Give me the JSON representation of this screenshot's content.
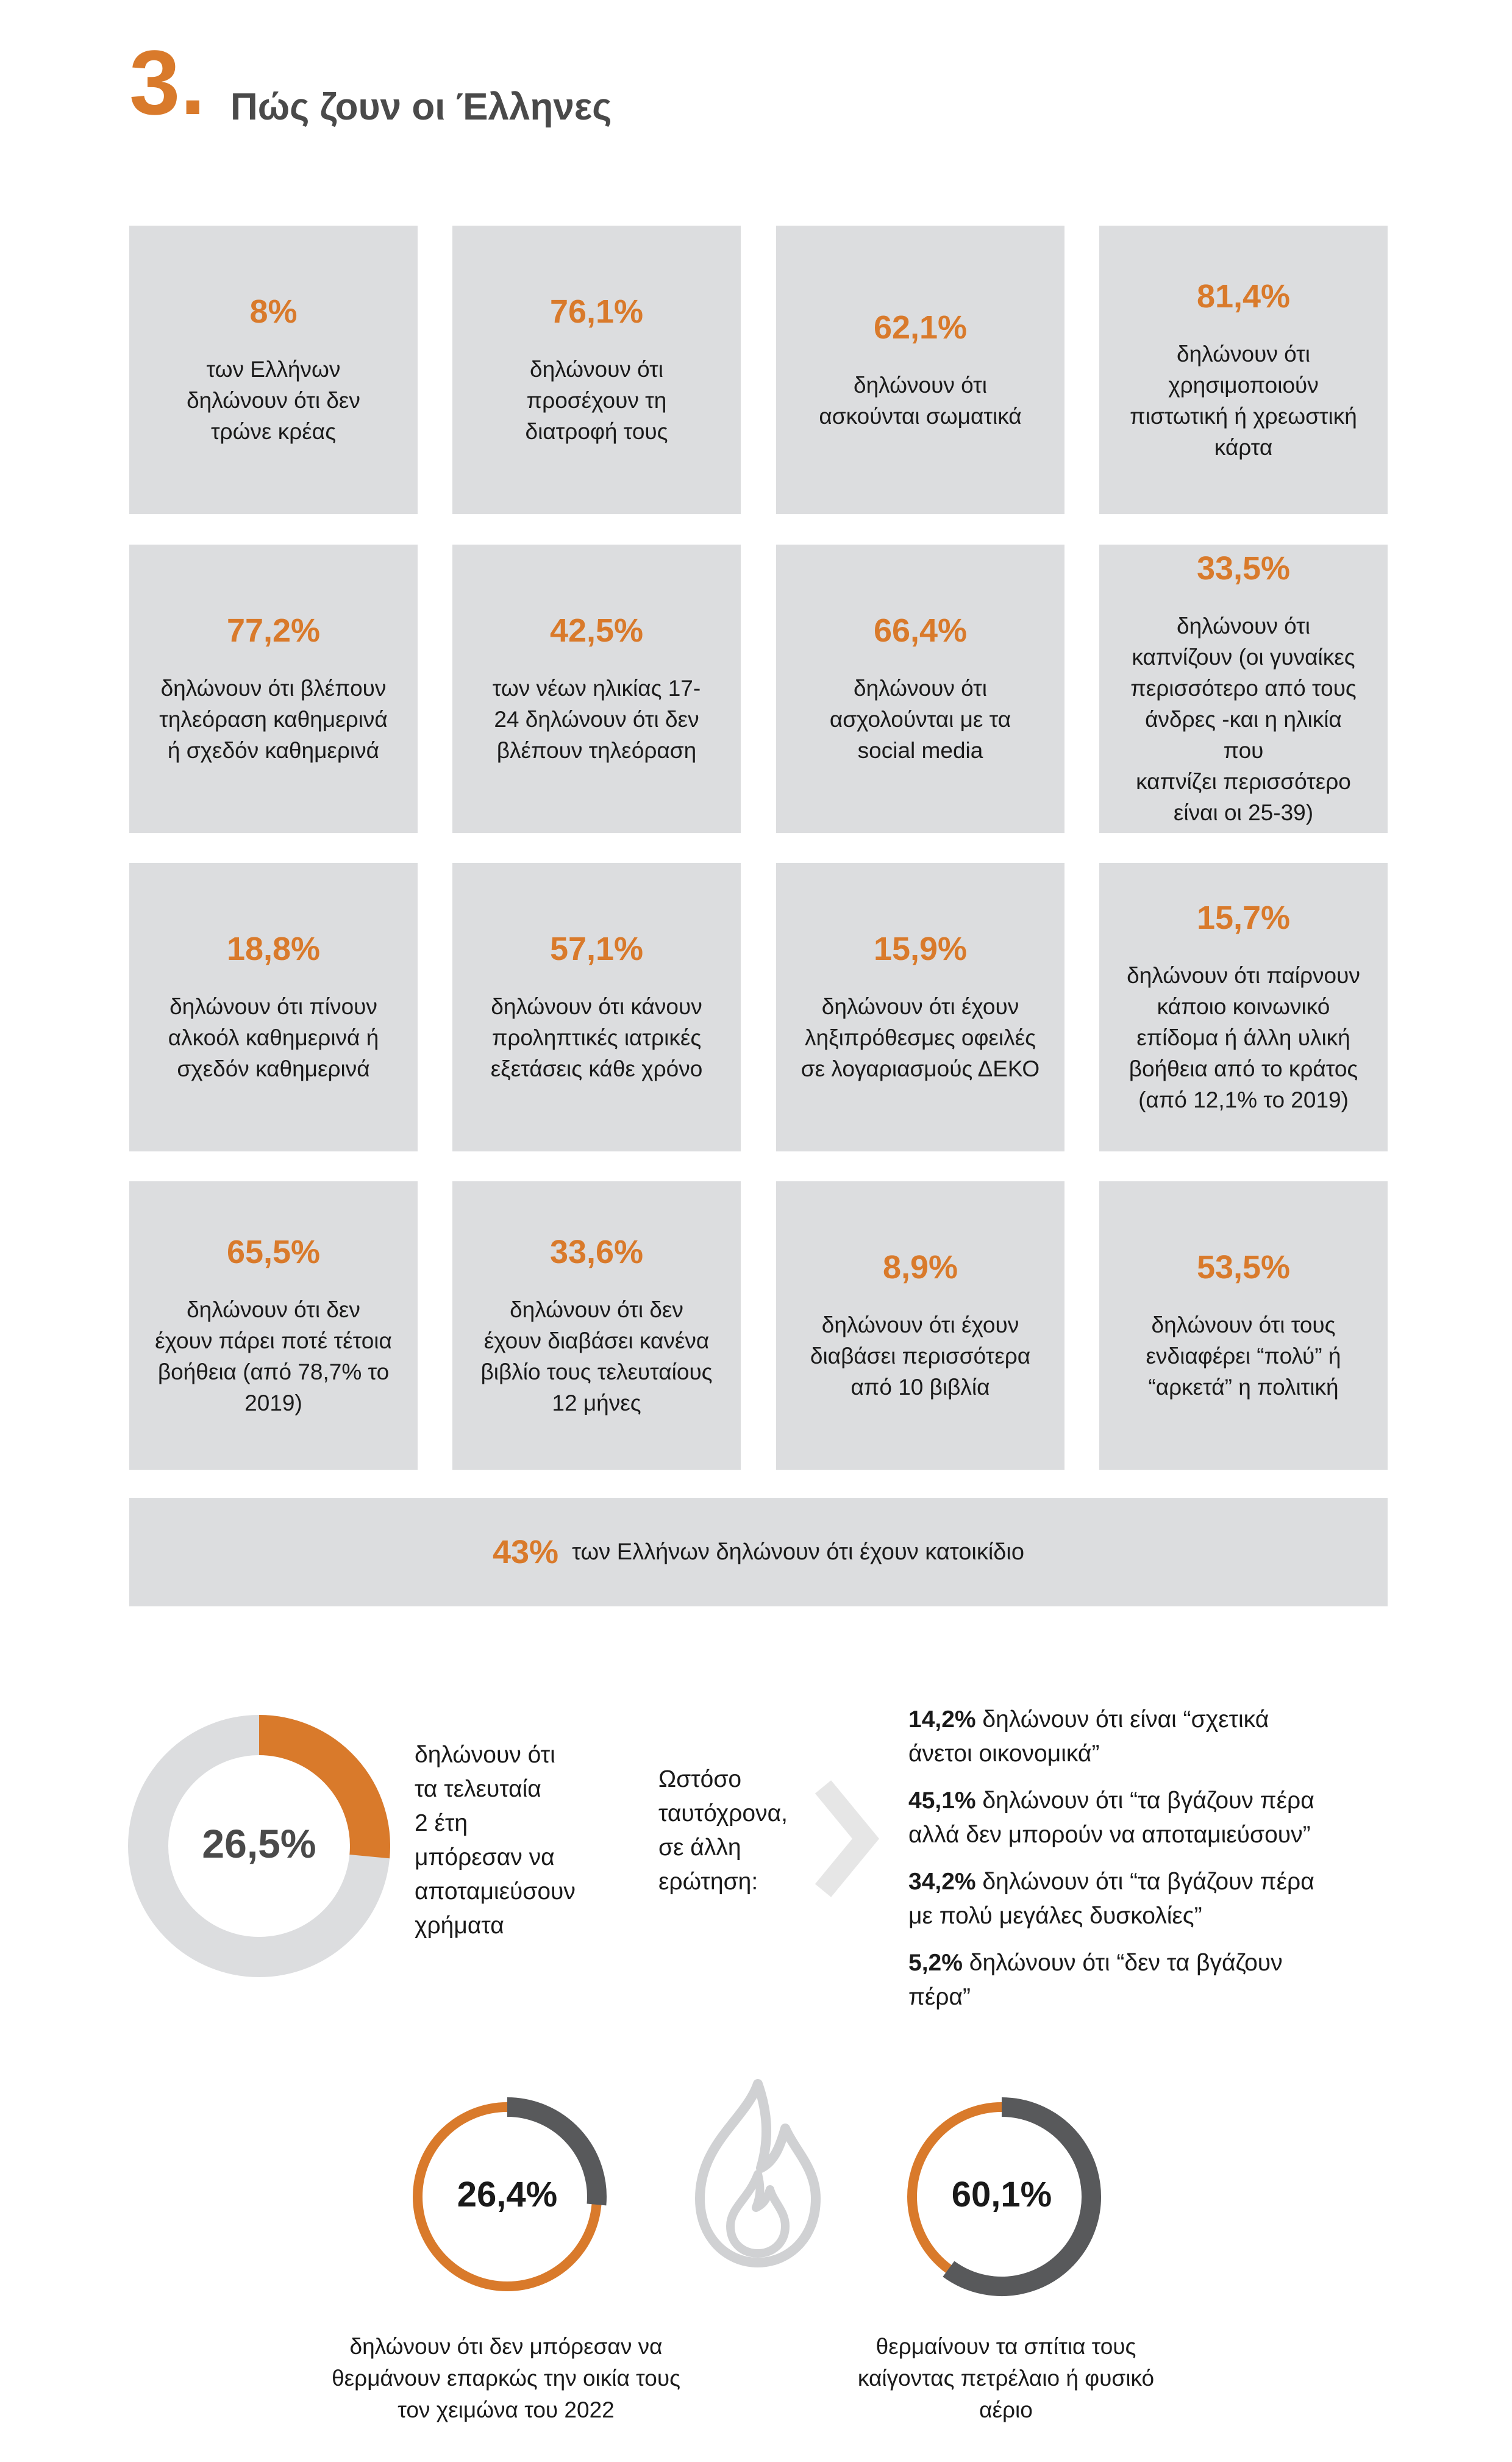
{
  "header": {
    "number": "3.",
    "title": "Πώς ζουν οι Έλληνες"
  },
  "cards": [
    {
      "pct": "8%",
      "desc": "των Ελλήνων\nδηλώνουν ότι δεν\nτρώνε κρέας"
    },
    {
      "pct": "76,1%",
      "desc": "δηλώνουν ότι\nπροσέχουν τη\nδιατροφή τους"
    },
    {
      "pct": "62,1%",
      "desc": "δηλώνουν ότι\nασκούνται σωματικά"
    },
    {
      "pct": "81,4%",
      "desc": "δηλώνουν ότι\nχρησιμοποιούν\nπιστωτική ή χρεωστική\nκάρτα"
    },
    {
      "pct": "77,2%",
      "desc": "δηλώνουν ότι βλέπουν\nτηλεόραση καθημερινά\nή σχεδόν καθημερινά"
    },
    {
      "pct": "42,5%",
      "desc": "των νέων ηλικίας 17-\n24 δηλώνουν ότι δεν\nβλέπουν τηλεόραση"
    },
    {
      "pct": "66,4%",
      "desc": "δηλώνουν ότι\nασχολούνται με τα\nsocial media"
    },
    {
      "pct": "33,5%",
      "desc": "δηλώνουν ότι\nκαπνίζουν (οι γυναίκες\nπερισσότερο από τους\nάνδρες -και η ηλικία που\nκαπνίζει περισσότερο\nείναι οι 25-39)"
    },
    {
      "pct": "18,8%",
      "desc": "δηλώνουν ότι πίνουν\nαλκοόλ καθημερινά ή\nσχεδόν καθημερινά"
    },
    {
      "pct": "57,1%",
      "desc": "δηλώνουν ότι κάνουν\nπροληπτικές ιατρικές\nεξετάσεις κάθε χρόνο"
    },
    {
      "pct": "15,9%",
      "desc": "δηλώνουν ότι έχουν\nληξιπρόθεσμες οφειλές\nσε λογαριασμούς ΔΕΚΟ"
    },
    {
      "pct": "15,7%",
      "desc": "δηλώνουν ότι παίρνουν\nκάποιο κοινωνικό\nεπίδομα ή άλλη υλική\nβοήθεια από το κράτος\n(από 12,1% το 2019)"
    },
    {
      "pct": "65,5%",
      "desc": "δηλώνουν ότι δεν\nέχουν πάρει ποτέ τέτοια\nβοήθεια (από 78,7% το\n2019)"
    },
    {
      "pct": "33,6%",
      "desc": "δηλώνουν ότι δεν\nέχουν διαβάσει κανένα\nβιβλίο τους τελευταίους\n12 μήνες"
    },
    {
      "pct": "8,9%",
      "desc": "δηλώνουν ότι έχουν\nδιαβάσει περισσότερα\nαπό 10 βιβλία"
    },
    {
      "pct": "53,5%",
      "desc": "δηλώνουν ότι τους\nενδιαφέρει “πολύ” ή\n“αρκετά” η πολιτική"
    }
  ],
  "banner": {
    "pct": "43%",
    "text": "των Ελλήνων δηλώνουν ότι έχουν κατοικίδιο"
  },
  "savings": {
    "donut_label": "26,5%",
    "donut_fraction": 0.265,
    "text": "δηλώνουν ότι\nτα τελευταία\n2 έτη\nμπόρεσαν να\nαποταμιεύσουν\nχρήματα",
    "bridge": "Ωστόσο\nταυτόχρονα,\nσε άλλη\nερώτηση:",
    "items": [
      {
        "pct": "14,2%",
        "text": " δηλώνουν ότι είναι “σχετικά\nάνετοι οικονομικά”"
      },
      {
        "pct": "45,1%",
        "text": " δηλώνουν ότι “τα βγάζουν πέρα\nαλλά δεν μπορούν να αποταμιεύσουν”"
      },
      {
        "pct": "34,2%",
        "text": " δηλώνουν ότι “τα βγάζουν πέρα\nμε πολύ μεγάλες δυσκολίες”"
      },
      {
        "pct": "5,2%",
        "text": " δηλώνουν ότι “δεν τα βγάζουν\nπέρα”"
      }
    ]
  },
  "heating": [
    {
      "label": "26,4%",
      "fraction": 0.264,
      "caption": "δηλώνουν ότι δεν μπόρεσαν να\nθερμάνουν επαρκώς την οικία τους\nτον χειμώνα του 2022"
    },
    {
      "label": "60,1%",
      "fraction": 0.601,
      "caption": "θερμαίνουν τα σπίτια τους\nκαίγοντας πετρέλαιο ή φυσικό\nαέριο"
    }
  ],
  "colors": {
    "accent": "#d97a2b",
    "card_bg": "#dcdddf",
    "donut_track": "#dcdddf",
    "dark": "#58595b"
  }
}
